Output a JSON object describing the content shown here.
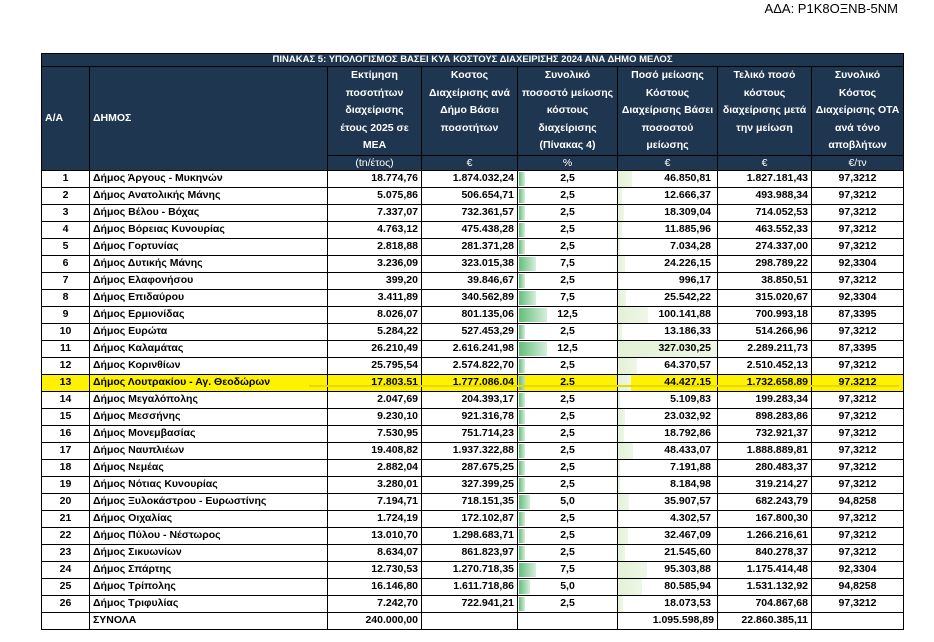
{
  "ada": "ΑΔΑ: Ρ1Κ8ΟΞΝΒ-5ΝΜ",
  "table": {
    "title": "ΠΙΝΑΚΑΣ 5: ΥΠΟΛΟΓΙΣΜΟΣ ΒΑΣΕΙ ΚΥΑ ΚΟΣΤΟΥΣ ΔΙΑΧΕΙΡΙΣΗΣ 2024 ΑΝΑ ΔΗΜΟ ΜΕΛΟΣ",
    "headers": {
      "aa": "Α/Α",
      "dimos": "ΔΗΜΟΣ",
      "ektimisi": "Εκτίμηση ποσοτήτων διαχείρισης έτους 2025 σε ΜΕΑ",
      "kostos": "Κοστος Διαχείρισης ανά Δήμο Βάσει ποσοτήτων",
      "pososto": "Συνολικό ποσοστό μείωσης κόστους διαχείρισης (Πίνακας 4)",
      "poso": "Ποσό μείωσης Κόστους Διαχείρισης Βάσει ποσοστού μείωσης",
      "teliko": "Τελικό ποσό κόστους διαχείρισης μετά την μείωση",
      "synoliko": "Συνολικό Κόστος Διαχείρισης ΟΤΑ ανά τόνο αποβλήτων"
    },
    "units": {
      "ektimisi": "(tn/έτος)",
      "kostos": "€",
      "pososto": "%",
      "poso": "€",
      "teliko": "€",
      "synoliko": "€/τν"
    },
    "highlight_row": 13,
    "rows": [
      {
        "aa": "1",
        "dimos": "Δήμος Άργους - Μυκηνών",
        "ektimisi": "18.774,76",
        "kostos": "1.874.032,24",
        "pososto": "2,5",
        "poso": "46.850,81",
        "teliko": "1.827.181,43",
        "synoliko": "97,3212",
        "pct_value": 2.5,
        "poso_value": 46850.81
      },
      {
        "aa": "2",
        "dimos": "Δήμος Ανατολικής Μάνης",
        "ektimisi": "5.075,86",
        "kostos": "506.654,71",
        "pososto": "2,5",
        "poso": "12.666,37",
        "teliko": "493.988,34",
        "synoliko": "97,3212",
        "pct_value": 2.5,
        "poso_value": 12666.37
      },
      {
        "aa": "3",
        "dimos": "Δήμος Βέλου - Βόχας",
        "ektimisi": "7.337,07",
        "kostos": "732.361,57",
        "pososto": "2,5",
        "poso": "18.309,04",
        "teliko": "714.052,53",
        "synoliko": "97,3212",
        "pct_value": 2.5,
        "poso_value": 18309.04
      },
      {
        "aa": "4",
        "dimos": "Δήμος Βόρειας Κυνουρίας",
        "ektimisi": "4.763,12",
        "kostos": "475.438,28",
        "pososto": "2,5",
        "poso": "11.885,96",
        "teliko": "463.552,33",
        "synoliko": "97,3212",
        "pct_value": 2.5,
        "poso_value": 11885.96
      },
      {
        "aa": "5",
        "dimos": "Δήμος Γορτυνίας",
        "ektimisi": "2.818,88",
        "kostos": "281.371,28",
        "pososto": "2,5",
        "poso": "7.034,28",
        "teliko": "274.337,00",
        "synoliko": "97,3212",
        "pct_value": 2.5,
        "poso_value": 7034.28
      },
      {
        "aa": "6",
        "dimos": "Δήμος Δυτικής Μάνης",
        "ektimisi": "3.236,09",
        "kostos": "323.015,38",
        "pososto": "7,5",
        "poso": "24.226,15",
        "teliko": "298.789,22",
        "synoliko": "92,3304",
        "pct_value": 7.5,
        "poso_value": 24226.15
      },
      {
        "aa": "7",
        "dimos": "Δήμος Ελαφονήσου",
        "ektimisi": "399,20",
        "kostos": "39.846,67",
        "pososto": "2,5",
        "poso": "996,17",
        "teliko": "38.850,51",
        "synoliko": "97,3212",
        "pct_value": 2.5,
        "poso_value": 996.17
      },
      {
        "aa": "8",
        "dimos": "Δήμος Επιδαύρου",
        "ektimisi": "3.411,89",
        "kostos": "340.562,89",
        "pososto": "7,5",
        "poso": "25.542,22",
        "teliko": "315.020,67",
        "synoliko": "92,3304",
        "pct_value": 7.5,
        "poso_value": 25542.22
      },
      {
        "aa": "9",
        "dimos": "Δήμος Ερμιονίδας",
        "ektimisi": "8.026,07",
        "kostos": "801.135,06",
        "pososto": "12,5",
        "poso": "100.141,88",
        "teliko": "700.993,18",
        "synoliko": "87,3395",
        "pct_value": 12.5,
        "poso_value": 100141.88
      },
      {
        "aa": "10",
        "dimos": "Δήμος Ευρώτα",
        "ektimisi": "5.284,22",
        "kostos": "527.453,29",
        "pososto": "2,5",
        "poso": "13.186,33",
        "teliko": "514.266,96",
        "synoliko": "97,3212",
        "pct_value": 2.5,
        "poso_value": 13186.33
      },
      {
        "aa": "11",
        "dimos": "Δήμος Καλαμάτας",
        "ektimisi": "26.210,49",
        "kostos": "2.616.241,98",
        "pososto": "12,5",
        "poso": "327.030,25",
        "teliko": "2.289.211,73",
        "synoliko": "87,3395",
        "pct_value": 12.5,
        "poso_value": 327030.25
      },
      {
        "aa": "12",
        "dimos": "Δήμος Κορινθίων",
        "ektimisi": "25.795,54",
        "kostos": "2.574.822,70",
        "pososto": "2,5",
        "poso": "64.370,57",
        "teliko": "2.510.452,13",
        "synoliko": "97,3212",
        "pct_value": 2.5,
        "poso_value": 64370.57
      },
      {
        "aa": "13",
        "dimos": "Δήμος Λουτρακίου - Αγ. Θεοδώρων",
        "ektimisi": "17.803,51",
        "kostos": "1.777.086,04",
        "pososto": "2,5",
        "poso": "44.427,15",
        "teliko": "1.732.658,89",
        "synoliko": "97,3212",
        "pct_value": 2.5,
        "poso_value": 44427.15
      },
      {
        "aa": "14",
        "dimos": "Δήμος Μεγαλόπολης",
        "ektimisi": "2.047,69",
        "kostos": "204.393,17",
        "pososto": "2,5",
        "poso": "5.109,83",
        "teliko": "199.283,34",
        "synoliko": "97,3212",
        "pct_value": 2.5,
        "poso_value": 5109.83
      },
      {
        "aa": "15",
        "dimos": "Δήμος Μεσσήνης",
        "ektimisi": "9.230,10",
        "kostos": "921.316,78",
        "pososto": "2,5",
        "poso": "23.032,92",
        "teliko": "898.283,86",
        "synoliko": "97,3212",
        "pct_value": 2.5,
        "poso_value": 23032.92
      },
      {
        "aa": "16",
        "dimos": "Δήμος Μονεμβασίας",
        "ektimisi": "7.530,95",
        "kostos": "751.714,23",
        "pososto": "2,5",
        "poso": "18.792,86",
        "teliko": "732.921,37",
        "synoliko": "97,3212",
        "pct_value": 2.5,
        "poso_value": 18792.86
      },
      {
        "aa": "17",
        "dimos": "Δήμος Ναυπλιέων",
        "ektimisi": "19.408,82",
        "kostos": "1.937.322,88",
        "pososto": "2,5",
        "poso": "48.433,07",
        "teliko": "1.888.889,81",
        "synoliko": "97,3212",
        "pct_value": 2.5,
        "poso_value": 48433.07
      },
      {
        "aa": "18",
        "dimos": "Δήμος Νεμέας",
        "ektimisi": "2.882,04",
        "kostos": "287.675,25",
        "pososto": "2,5",
        "poso": "7.191,88",
        "teliko": "280.483,37",
        "synoliko": "97,3212",
        "pct_value": 2.5,
        "poso_value": 7191.88
      },
      {
        "aa": "19",
        "dimos": "Δήμος Νότιας Κυνουρίας",
        "ektimisi": "3.280,01",
        "kostos": "327.399,25",
        "pososto": "2,5",
        "poso": "8.184,98",
        "teliko": "319.214,27",
        "synoliko": "97,3212",
        "pct_value": 2.5,
        "poso_value": 8184.98
      },
      {
        "aa": "20",
        "dimos": "Δήμος Ξυλοκάστρου - Ευρωστίνης",
        "ektimisi": "7.194,71",
        "kostos": "718.151,35",
        "pososto": "5,0",
        "poso": "35.907,57",
        "teliko": "682.243,79",
        "synoliko": "94,8258",
        "pct_value": 5.0,
        "poso_value": 35907.57
      },
      {
        "aa": "21",
        "dimos": "Δήμος Οιχαλίας",
        "ektimisi": "1.724,19",
        "kostos": "172.102,87",
        "pososto": "2,5",
        "poso": "4.302,57",
        "teliko": "167.800,30",
        "synoliko": "97,3212",
        "pct_value": 2.5,
        "poso_value": 4302.57
      },
      {
        "aa": "22",
        "dimos": "Δήμος Πύλου - Νέστωρος",
        "ektimisi": "13.010,70",
        "kostos": "1.298.683,71",
        "pososto": "2,5",
        "poso": "32.467,09",
        "teliko": "1.266.216,61",
        "synoliko": "97,3212",
        "pct_value": 2.5,
        "poso_value": 32467.09
      },
      {
        "aa": "23",
        "dimos": "Δήμος Σικυωνίων",
        "ektimisi": "8.634,07",
        "kostos": "861.823,97",
        "pososto": "2,5",
        "poso": "21.545,60",
        "teliko": "840.278,37",
        "synoliko": "97,3212",
        "pct_value": 2.5,
        "poso_value": 21545.6
      },
      {
        "aa": "24",
        "dimos": "Δήμος Σπάρτης",
        "ektimisi": "12.730,53",
        "kostos": "1.270.718,35",
        "pososto": "7,5",
        "poso": "95.303,88",
        "teliko": "1.175.414,48",
        "synoliko": "92,3304",
        "pct_value": 7.5,
        "poso_value": 95303.88
      },
      {
        "aa": "25",
        "dimos": "Δήμος Τρίπολης",
        "ektimisi": "16.146,80",
        "kostos": "1.611.718,86",
        "pososto": "5,0",
        "poso": "80.585,94",
        "teliko": "1.531.132,92",
        "synoliko": "94,8258",
        "pct_value": 5.0,
        "poso_value": 80585.94
      },
      {
        "aa": "26",
        "dimos": "Δήμος Τριφυλίας",
        "ektimisi": "7.242,70",
        "kostos": "722.941,21",
        "pososto": "2,5",
        "poso": "18.073,53",
        "teliko": "704.867,68",
        "synoliko": "97,3212",
        "pct_value": 2.5,
        "poso_value": 18073.53
      }
    ],
    "totals": {
      "label": "ΣΥΝΟΛΑ",
      "ektimisi": "240.000,00",
      "poso": "1.095.598,89",
      "teliko": "22.860.385,11"
    }
  }
}
